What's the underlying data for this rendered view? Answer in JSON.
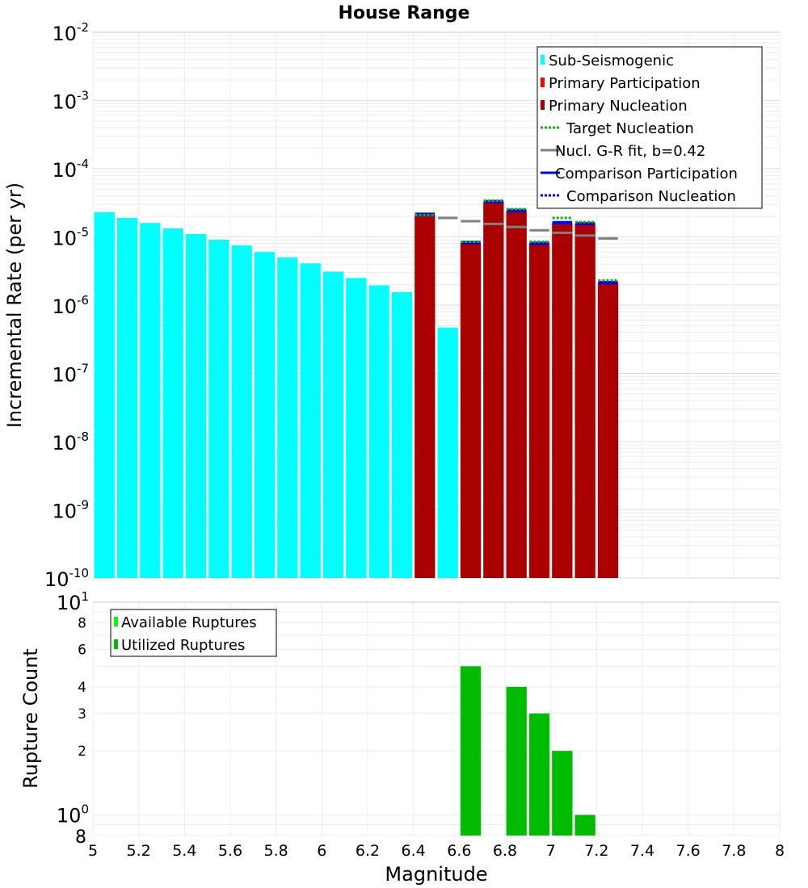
{
  "chart_data": [
    {
      "type": "bar",
      "title": "House Range",
      "ylabel": "Incremental Rate (per yr)",
      "xlabel": "",
      "xlim": [
        5,
        8
      ],
      "ylim": [
        1e-10,
        0.01
      ],
      "yscale": "log",
      "bin_width": 0.1,
      "y_tick_exponents": [
        "-2",
        "-3",
        "-4",
        "-5",
        "-6",
        "-7",
        "-8",
        "-9",
        "-10"
      ],
      "y_tick_base": "10",
      "legend": {
        "position": "top-right",
        "entries": [
          {
            "label": "Sub-Seismogenic",
            "color": "#00ffff",
            "style": "box"
          },
          {
            "label": "Primary Participation",
            "color": "#ff0000",
            "style": "box"
          },
          {
            "label": "Primary Nucleation",
            "color": "#aa0000",
            "style": "box"
          },
          {
            "label": "Target Nucleation",
            "color": "#00bb00",
            "style": "dotted"
          },
          {
            "label": "Nucl. G-R fit, b=0.42",
            "color": "#808080",
            "style": "solid"
          },
          {
            "label": "Comparison Participation",
            "color": "#0000ff",
            "style": "solid"
          },
          {
            "label": "Comparison Nucleation",
            "color": "#0000ff",
            "style": "dotted"
          }
        ]
      },
      "series": [
        {
          "name": "Sub-Seismogenic",
          "color": "#00ffff",
          "x": [
            5.05,
            5.15,
            5.25,
            5.35,
            5.45,
            5.55,
            5.65,
            5.75,
            5.85,
            5.95,
            6.05,
            6.15,
            6.25,
            6.35,
            6.55
          ],
          "values": [
            2.3e-05,
            1.9e-05,
            1.6e-05,
            1.33e-05,
            1.1e-05,
            9.1e-06,
            7.5e-06,
            6e-06,
            5e-06,
            4.1e-06,
            3.1e-06,
            2.5e-06,
            1.95e-06,
            1.55e-06,
            4.7e-07
          ]
        },
        {
          "name": "Primary Nucleation",
          "color": "#aa0000",
          "x": [
            6.45,
            6.65,
            6.75,
            6.85,
            6.95,
            7.05,
            7.15,
            7.25
          ],
          "values": [
            2.1e-05,
            8.2e-06,
            3.3e-05,
            2.4e-05,
            8e-06,
            1.6e-05,
            1.55e-05,
            2.1e-06
          ]
        },
        {
          "name": "Target Nucleation",
          "color": "#00bb00",
          "x": [
            6.45,
            6.65,
            6.75,
            6.85,
            6.95,
            7.05,
            7.15,
            7.25
          ],
          "values": [
            2.1e-05,
            8.5e-06,
            3.4e-05,
            2.55e-05,
            8.5e-06,
            1.9e-05,
            1.65e-05,
            2.3e-06
          ]
        },
        {
          "name": "Nucl. G-R fit, b=0.42",
          "color": "#808080",
          "x": [
            6.45,
            6.55,
            6.65,
            6.75,
            6.85,
            6.95,
            7.05,
            7.15,
            7.25
          ],
          "values": [
            2.1e-05,
            1.9e-05,
            1.7e-05,
            1.55e-05,
            1.4e-05,
            1.25e-05,
            1.15e-05,
            1.05e-05,
            9.5e-06
          ]
        },
        {
          "name": "Comparison Participation",
          "color": "#0000ff",
          "x": [
            6.45,
            6.65,
            6.75,
            6.85,
            6.95,
            7.05,
            7.15,
            7.25
          ],
          "values": [
            2.15e-05,
            8.3e-06,
            3.3e-05,
            2.45e-05,
            8.1e-06,
            1.62e-05,
            1.57e-05,
            2.15e-06
          ]
        },
        {
          "name": "Comparison Nucleation",
          "color": "#0000ff",
          "x": [
            6.45,
            6.65,
            6.75,
            6.85,
            6.95,
            7.05,
            7.15,
            7.25
          ],
          "values": [
            2.1e-05,
            8.2e-06,
            3.3e-05,
            2.4e-05,
            8e-06,
            1.6e-05,
            1.55e-05,
            2.1e-06
          ]
        }
      ]
    },
    {
      "type": "bar",
      "title": "",
      "ylabel": "Rupture Count",
      "xlabel": "Magnitude",
      "xlim": [
        5,
        8
      ],
      "ylim": [
        0.8,
        10
      ],
      "yscale": "log",
      "bin_width": 0.1,
      "x_ticks": [
        "5",
        "5.2",
        "5.4",
        "5.6",
        "5.8",
        "6",
        "6.2",
        "6.4",
        "6.6",
        "6.8",
        "7",
        "7.2",
        "7.4",
        "7.6",
        "7.8",
        "8"
      ],
      "y_tick_labels": [
        {
          "value": 8,
          "label": "8"
        },
        {
          "value": 6,
          "label": "6"
        },
        {
          "value": 4,
          "label": "4"
        },
        {
          "value": 3,
          "label": "3"
        },
        {
          "value": 2,
          "label": "2"
        }
      ],
      "y_pow_labels": [
        {
          "value": 10,
          "base": "10",
          "exp": "1"
        },
        {
          "value": 1,
          "base": "10",
          "exp": "0"
        }
      ],
      "y_bottom_label": "8",
      "legend": {
        "position": "top-left",
        "entries": [
          {
            "label": "Available Ruptures",
            "color": "#00ff00",
            "style": "box"
          },
          {
            "label": "Utilized Ruptures",
            "color": "#00bb00",
            "style": "box"
          }
        ]
      },
      "series": [
        {
          "name": "Utilized Ruptures",
          "color": "#00bb00",
          "x": [
            6.65,
            6.85,
            6.95,
            7.05,
            7.15
          ],
          "values": [
            5,
            4,
            3,
            2,
            1
          ]
        }
      ]
    }
  ]
}
